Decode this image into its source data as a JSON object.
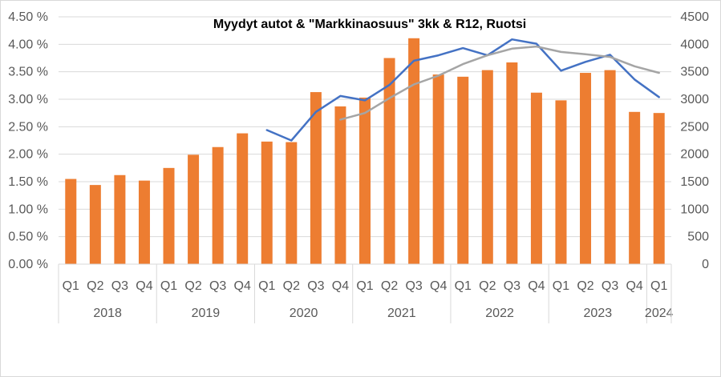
{
  "chart_data": {
    "type": "bar",
    "title": "Myydyt autot & \"Markkinaosuus\"  3kk & R12, Ruotsi",
    "categories": [
      "Q1",
      "Q2",
      "Q3",
      "Q4",
      "Q1",
      "Q2",
      "Q3",
      "Q4",
      "Q1",
      "Q2",
      "Q3",
      "Q4",
      "Q1",
      "Q2",
      "Q3",
      "Q4",
      "Q1",
      "Q2",
      "Q3",
      "Q4",
      "Q1",
      "Q2",
      "Q3",
      "Q4",
      "Q1"
    ],
    "years": [
      {
        "label": "2018",
        "quarters": 4
      },
      {
        "label": "2019",
        "quarters": 4
      },
      {
        "label": "2020",
        "quarters": 4
      },
      {
        "label": "2021",
        "quarters": 4
      },
      {
        "label": "2022",
        "quarters": 4
      },
      {
        "label": "2023",
        "quarters": 4
      },
      {
        "label": "2024",
        "quarters": 1
      }
    ],
    "y_left": {
      "ticks": [
        "0.00 %",
        "0.50 %",
        "1.00 %",
        "1.50 %",
        "2.00 %",
        "2.50 %",
        "3.00 %",
        "3.50 %",
        "4.00 %",
        "4.50 %"
      ],
      "ylim": [
        0,
        4.5
      ]
    },
    "y_right": {
      "ticks": [
        "0",
        "500",
        "1000",
        "1500",
        "2000",
        "2500",
        "3000",
        "3500",
        "4000",
        "4500"
      ],
      "ylim": [
        0,
        4500
      ]
    },
    "series": [
      {
        "kind": "bar",
        "axis": "right",
        "color": "#ED7D31",
        "values": [
          1550,
          1440,
          1620,
          1520,
          1750,
          1990,
          2130,
          2380,
          2230,
          2220,
          3130,
          2870,
          3030,
          3750,
          4110,
          3450,
          3410,
          3530,
          3670,
          3120,
          2980,
          3480,
          3530,
          2770,
          2750
        ]
      },
      {
        "kind": "line",
        "axis": "left",
        "color": "#4472C4",
        "values": [
          null,
          null,
          null,
          null,
          null,
          null,
          null,
          null,
          2.44,
          2.25,
          2.77,
          3.06,
          2.98,
          3.26,
          3.7,
          3.8,
          3.93,
          3.8,
          4.09,
          4.01,
          3.52,
          3.68,
          3.81,
          3.36,
          3.04
        ]
      },
      {
        "kind": "line",
        "axis": "left",
        "color": "#A5A5A5",
        "values": [
          null,
          null,
          null,
          null,
          null,
          null,
          null,
          null,
          null,
          null,
          null,
          2.63,
          2.75,
          3.02,
          3.27,
          3.43,
          3.64,
          3.8,
          3.92,
          3.96,
          3.86,
          3.82,
          3.77,
          3.6,
          3.48
        ]
      }
    ],
    "grid": true,
    "legend": "none"
  }
}
